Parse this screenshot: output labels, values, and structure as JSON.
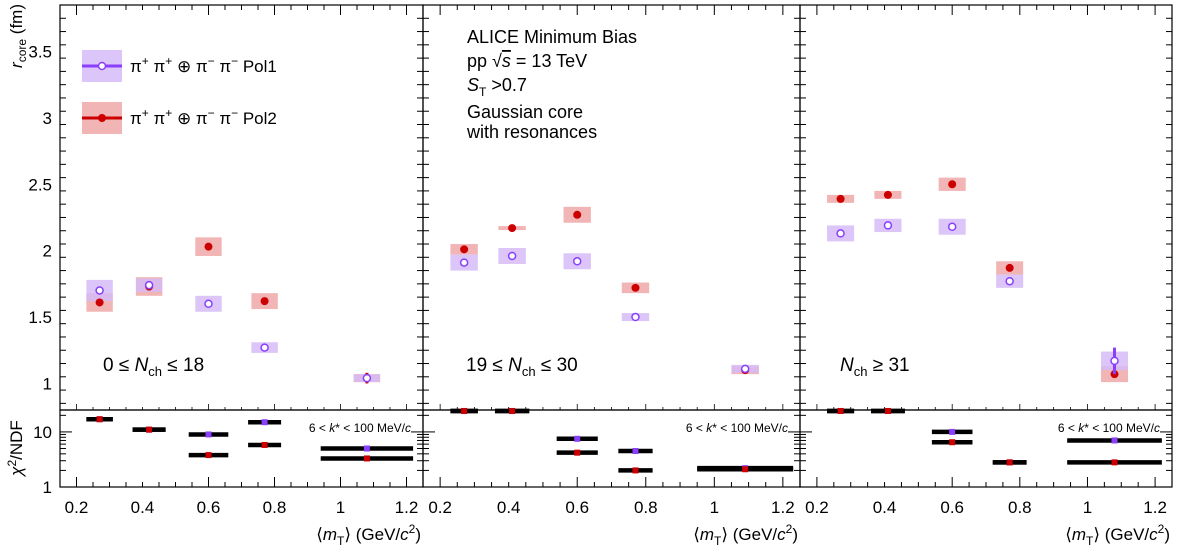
{
  "chart_data": {
    "type": "scatter",
    "title": "",
    "ylabel_main": "r_core (fm)",
    "ylabel_sub": "χ²/NDF",
    "xlabel": "⟨m_T⟩ (GeV/c²)",
    "xlim": [
      0.15,
      1.25
    ],
    "ylim_main": [
      0.8,
      3.85
    ],
    "ylim_sub": [
      1,
      25
    ],
    "sub_scale": "log",
    "y_ticks_main": [
      1,
      1.5,
      2,
      2.5,
      3,
      3.5
    ],
    "y_ticks_sub": [
      1,
      10
    ],
    "x_ticks": [
      0.2,
      0.4,
      0.6,
      0.8,
      1,
      1.2
    ],
    "annotation": {
      "lines": [
        "ALICE Minimum Bias",
        "pp √s = 13 TeV",
        "S_T >0.7",
        "Gaussian core",
        "with resonances"
      ]
    },
    "kstar_label": "6 < k* < 100 MeV/c",
    "series": [
      {
        "name": "π⁺ π⁺ ⊕ π⁻ π⁻ Pol1",
        "color": "#8a3ffc",
        "band_color": "#d6bbf7"
      },
      {
        "name": "π⁺ π⁺ ⊕ π⁻ π⁻ Pol2",
        "color": "#cc0000",
        "band_color": "#f0a8a8"
      }
    ],
    "panels": [
      {
        "label": "0 ≤ N_ch ≤ 18",
        "points": {
          "Pol1": {
            "x": [
              0.27,
              0.42,
              0.6,
              0.77,
              1.08
            ],
            "y": [
              1.7,
              1.74,
              1.6,
              1.27,
              1.04
            ],
            "band": [
              0.08,
              0.05,
              0.06,
              0.04,
              0.03
            ],
            "err": [
              0.0,
              0.0,
              0.0,
              0.0,
              0.03
            ]
          },
          "Pol2": {
            "x": [
              0.27,
              0.42,
              0.6,
              0.77,
              1.08
            ],
            "y": [
              1.61,
              1.73,
              2.03,
              1.62,
              1.04
            ],
            "band": [
              0.07,
              0.07,
              0.07,
              0.06,
              0.03
            ],
            "err": [
              0.0,
              0.03,
              0.0,
              0.0,
              0.04
            ]
          },
          "chi2_pol1": [
            17,
            11,
            9.0,
            15,
            5.0
          ],
          "chi2_pol2": [
            17,
            11,
            3.8,
            5.8,
            3.3
          ]
        }
      },
      {
        "label": "19 ≤ N_ch ≤ 30",
        "points": {
          "Pol1": {
            "x": [
              0.27,
              0.41,
              0.6,
              0.77,
              1.09
            ],
            "y": [
              1.91,
              1.96,
              1.92,
              1.5,
              1.11
            ],
            "band": [
              0.06,
              0.06,
              0.06,
              0.03,
              0.03
            ],
            "err": [
              0.0,
              0.0,
              0.0,
              0.0,
              0.0
            ]
          },
          "Pol2": {
            "x": [
              0.27,
              0.41,
              0.6,
              0.77,
              1.09
            ],
            "y": [
              2.01,
              2.17,
              2.27,
              1.72,
              1.1
            ],
            "band": [
              0.04,
              0.015,
              0.06,
              0.04,
              0.03
            ],
            "err": [
              0.0,
              0.0,
              0.0,
              0.0,
              0.0
            ]
          },
          "chi2_pol1": [
            38,
            26,
            7.5,
            4.5,
            2.2
          ],
          "chi2_pol2": [
            38,
            26,
            4.2,
            2.0,
            2.1
          ]
        }
      },
      {
        "label": "N_ch ≥ 31",
        "points": {
          "Pol1": {
            "x": [
              0.27,
              0.41,
              0.6,
              0.77,
              1.08
            ],
            "y": [
              2.13,
              2.19,
              2.18,
              1.77,
              1.17
            ],
            "band": [
              0.06,
              0.05,
              0.06,
              0.05,
              0.07
            ],
            "err": [
              0.0,
              0.0,
              0.0,
              0.0,
              0.1
            ]
          },
          "Pol2": {
            "x": [
              0.27,
              0.41,
              0.6,
              0.77,
              1.08
            ],
            "y": [
              2.39,
              2.42,
              2.5,
              1.87,
              1.07
            ],
            "band": [
              0.03,
              0.03,
              0.05,
              0.05,
              0.06
            ],
            "err": [
              0.0,
              0.0,
              0.0,
              0.0,
              0.0
            ]
          },
          "chi2_pol1": [
            38,
            40,
            10,
            2.8,
            7.0
          ],
          "chi2_pol2": [
            38,
            36,
            6.5,
            2.8,
            2.8
          ]
        }
      }
    ]
  }
}
